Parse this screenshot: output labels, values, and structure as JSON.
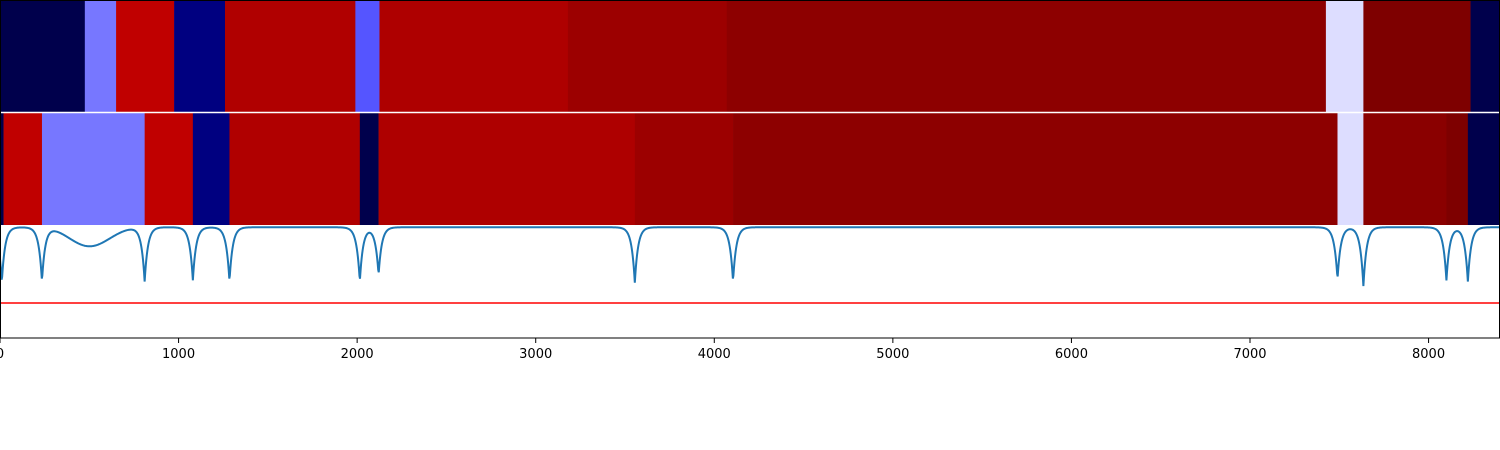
{
  "chart_data": {
    "type": "heatmap",
    "title": "",
    "xlabel": "",
    "ylabel": "",
    "xlim": [
      0,
      8400
    ],
    "x_ticks": [
      0,
      1000,
      2000,
      3000,
      4000,
      5000,
      6000,
      7000,
      8000
    ],
    "x_tick_labels": [
      "0",
      "1000",
      "2000",
      "3000",
      "4000",
      "5000",
      "6000",
      "7000",
      "8000"
    ],
    "grid": false,
    "legend": "none",
    "segment_rows": [
      {
        "segments": [
          {
            "start": 0,
            "end": 475,
            "color": "#00004c"
          },
          {
            "start": 475,
            "end": 650,
            "color": "#7777ff"
          },
          {
            "start": 650,
            "end": 975,
            "color": "#c00000"
          },
          {
            "start": 975,
            "end": 1260,
            "color": "#000080"
          },
          {
            "start": 1260,
            "end": 1990,
            "color": "#b00000"
          },
          {
            "start": 1990,
            "end": 2125,
            "color": "#5555ff"
          },
          {
            "start": 2125,
            "end": 3180,
            "color": "#ae0000"
          },
          {
            "start": 3180,
            "end": 4070,
            "color": "#9c0000"
          },
          {
            "start": 4070,
            "end": 7425,
            "color": "#8d0000"
          },
          {
            "start": 7425,
            "end": 7635,
            "color": "#ddddff"
          },
          {
            "start": 7635,
            "end": 8235,
            "color": "#7e0000"
          },
          {
            "start": 8235,
            "end": 8400,
            "color": "#00004c"
          }
        ]
      },
      {
        "segments": [
          {
            "start": 0,
            "end": 20,
            "color": "#00004c"
          },
          {
            "start": 20,
            "end": 235,
            "color": "#c00000"
          },
          {
            "start": 235,
            "end": 810,
            "color": "#7777ff"
          },
          {
            "start": 810,
            "end": 1080,
            "color": "#c00000"
          },
          {
            "start": 1080,
            "end": 1285,
            "color": "#000080"
          },
          {
            "start": 1285,
            "end": 2015,
            "color": "#b00000"
          },
          {
            "start": 2015,
            "end": 2120,
            "color": "#00004c"
          },
          {
            "start": 2120,
            "end": 3555,
            "color": "#ae0000"
          },
          {
            "start": 3555,
            "end": 4105,
            "color": "#9c0000"
          },
          {
            "start": 4105,
            "end": 7490,
            "color": "#8d0000"
          },
          {
            "start": 7490,
            "end": 7635,
            "color": "#ddddff"
          },
          {
            "start": 7635,
            "end": 8100,
            "color": "#8a0000"
          },
          {
            "start": 8100,
            "end": 8220,
            "color": "#7e0000"
          },
          {
            "start": 8220,
            "end": 8400,
            "color": "#00004c"
          }
        ]
      }
    ],
    "signal": {
      "color": "#1f77b4",
      "y_range": [
        0,
        1
      ],
      "baseline": 0.98,
      "dips": [
        {
          "x": 10,
          "depth": 0.49
        },
        {
          "x": 235,
          "depth": 0.48
        },
        {
          "x": 810,
          "depth": 0.48
        },
        {
          "x": 1080,
          "depth": 0.47
        },
        {
          "x": 1285,
          "depth": 0.48
        },
        {
          "x": 2015,
          "depth": 0.48
        },
        {
          "x": 2120,
          "depth": 0.42
        },
        {
          "x": 3555,
          "depth": 0.49
        },
        {
          "x": 4105,
          "depth": 0.48
        },
        {
          "x": 7490,
          "depth": 0.46
        },
        {
          "x": 7635,
          "depth": 0.52
        },
        {
          "x": 8100,
          "depth": 0.47
        },
        {
          "x": 8220,
          "depth": 0.48
        }
      ],
      "bump": {
        "start": 240,
        "end": 800,
        "center": 490,
        "depth": 0.17
      }
    },
    "threshold": {
      "value": 0.31,
      "color": "#ff0000"
    }
  }
}
